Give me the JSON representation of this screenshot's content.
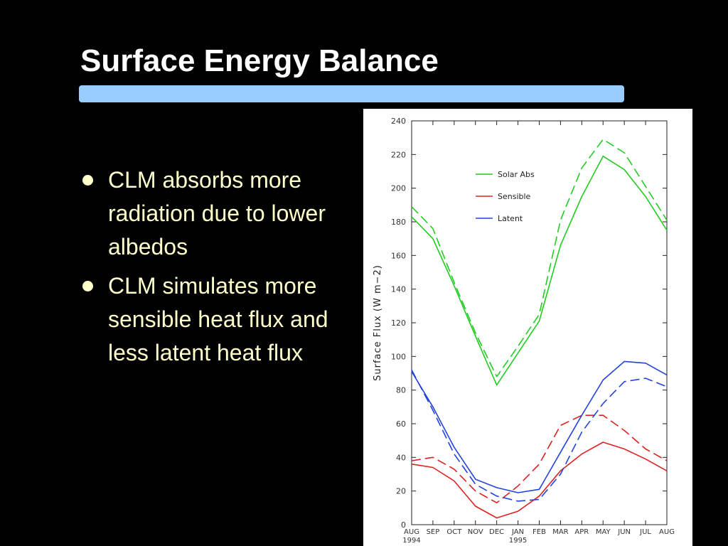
{
  "slide": {
    "title": "Surface Energy Balance",
    "accent_bar_color": "#99ccff",
    "text_color": "#ffffcc",
    "bullets": [
      {
        "text": "CLM absorbs more radiation due to lower albedos"
      },
      {
        "text": "CLM simulates more sensible heat flux and less latent heat flux"
      }
    ]
  },
  "chart_data": {
    "type": "line",
    "title": "",
    "xlabel": "",
    "ylabel": "Surface Flux (W m−2)",
    "ylim": [
      0,
      240
    ],
    "yticks": [
      0,
      20,
      40,
      60,
      80,
      100,
      120,
      140,
      160,
      180,
      200,
      220,
      240
    ],
    "grid": false,
    "legend_position": "top-left",
    "categories": [
      "AUG",
      "SEP",
      "OCT",
      "NOV",
      "DEC",
      "JAN",
      "FEB",
      "MAR",
      "APR",
      "MAY",
      "JUN",
      "JUL",
      "AUG"
    ],
    "category_sublabels": [
      "1994",
      "",
      "",
      "",
      "",
      "1995",
      "",
      "",
      "",
      "",
      "",
      "",
      ""
    ],
    "legend": [
      {
        "name": "Solar Abs",
        "color": "#22cc22"
      },
      {
        "name": "Sensible",
        "color": "#dd2222"
      },
      {
        "name": "Latent",
        "color": "#2244dd"
      }
    ],
    "series": [
      {
        "name": "Solar Abs",
        "color": "#22cc22",
        "style": "solid",
        "values": [
          183,
          170,
          142,
          112,
          83,
          102,
          121,
          166,
          195,
          219,
          211,
          195,
          175
        ]
      },
      {
        "color": "#22cc22",
        "style": "dashed",
        "values": [
          189,
          176,
          144,
          114,
          88,
          106,
          125,
          181,
          212,
          229,
          221,
          201,
          181
        ]
      },
      {
        "name": "Sensible",
        "color": "#dd2222",
        "style": "solid",
        "values": [
          36,
          34,
          26,
          11,
          4,
          8,
          17,
          32,
          42,
          49,
          45,
          39,
          32
        ]
      },
      {
        "color": "#dd2222",
        "style": "dashed",
        "values": [
          38,
          40,
          33,
          20,
          13,
          23,
          36,
          59,
          65,
          65,
          56,
          45,
          38
        ]
      },
      {
        "name": "Latent",
        "color": "#2244dd",
        "style": "solid",
        "values": [
          91,
          70,
          46,
          27,
          22,
          19,
          21,
          43,
          65,
          86,
          97,
          96,
          89
        ]
      },
      {
        "color": "#2244dd",
        "style": "dashed",
        "values": [
          92,
          68,
          42,
          24,
          17,
          14,
          15,
          30,
          55,
          72,
          85,
          87,
          82
        ]
      }
    ]
  }
}
